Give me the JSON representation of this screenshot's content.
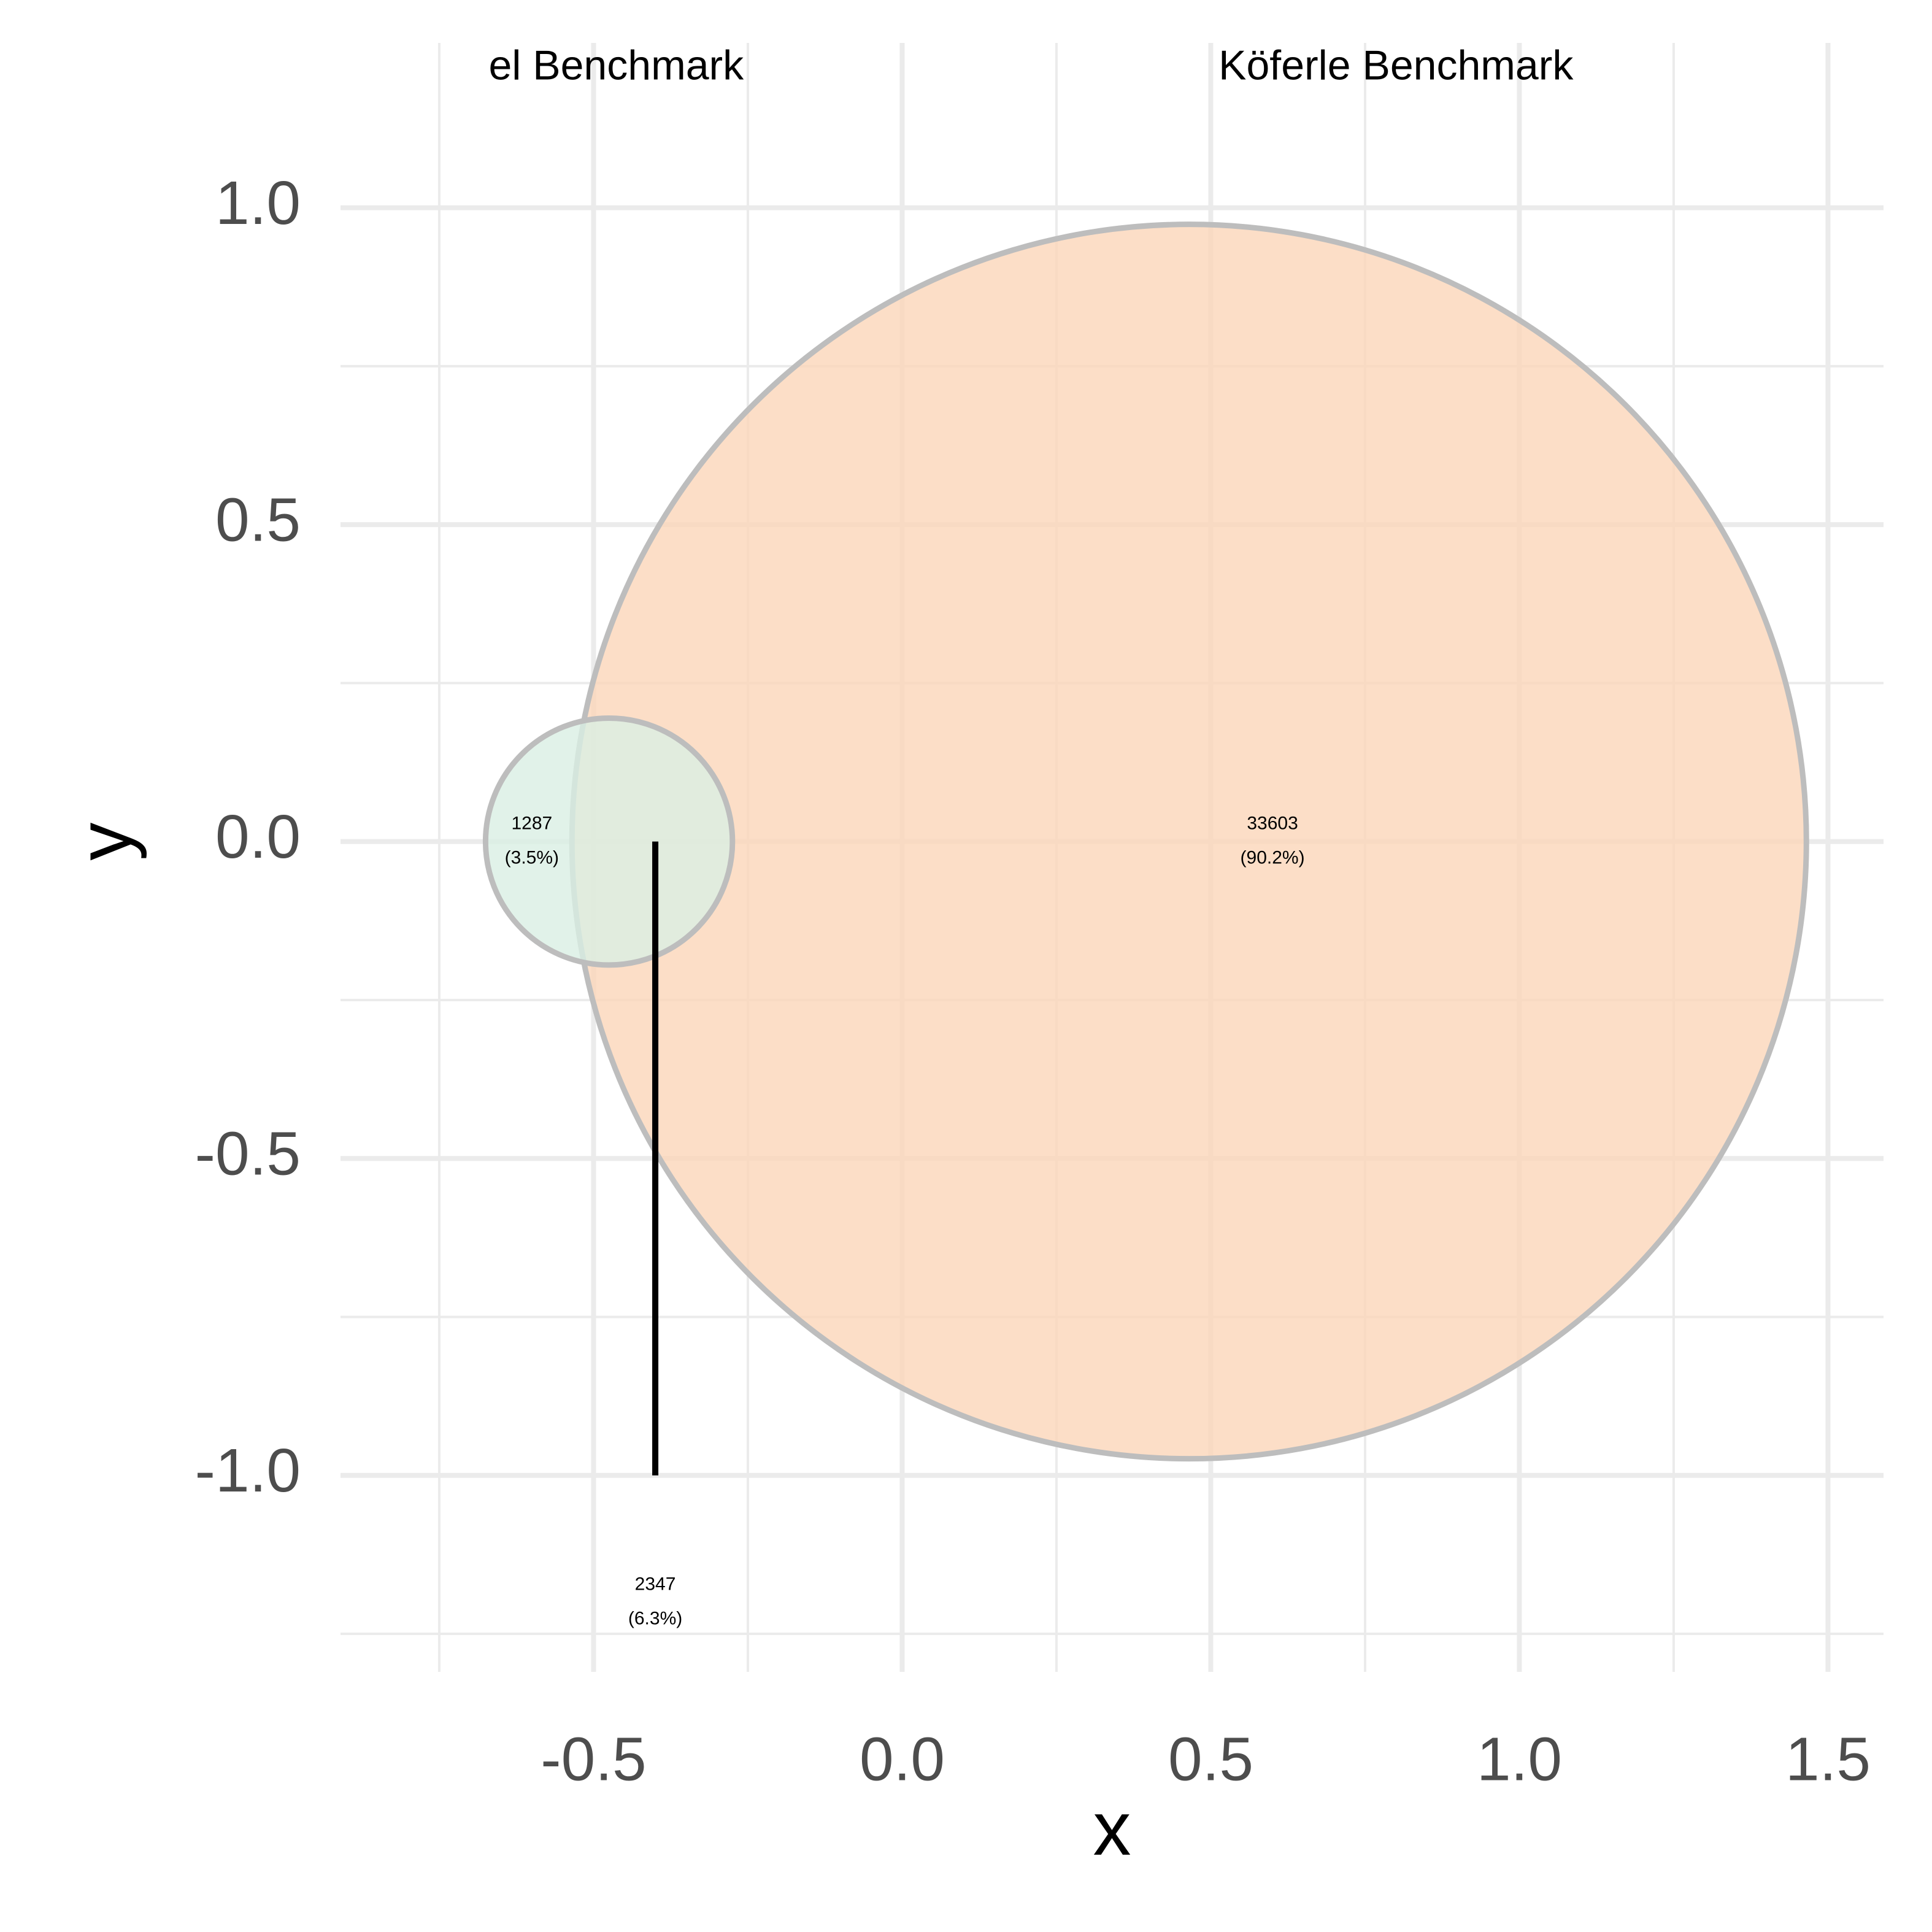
{
  "chart_data": {
    "type": "venn",
    "title": "",
    "xlabel": "x",
    "ylabel": "y",
    "xlim": [
      -0.91,
      1.59
    ],
    "ylim": [
      -1.31,
      1.26
    ],
    "grid": true,
    "x_ticks": [
      {
        "value": -0.5,
        "label": "-0.5"
      },
      {
        "value": 0.0,
        "label": "0.0"
      },
      {
        "value": 0.5,
        "label": "0.5"
      },
      {
        "value": 1.0,
        "label": "1.0"
      },
      {
        "value": 1.5,
        "label": "1.5"
      }
    ],
    "y_ticks": [
      {
        "value": 1.0,
        "label": "1.0"
      },
      {
        "value": 0.5,
        "label": "0.5"
      },
      {
        "value": 0.0,
        "label": "0.0"
      },
      {
        "value": -0.5,
        "label": "-0.5"
      },
      {
        "value": -1.0,
        "label": "-1.0"
      }
    ],
    "x_minor": [
      -0.75,
      -0.25,
      0.25,
      0.75,
      1.25
    ],
    "y_minor": [
      0.75,
      0.25,
      -0.25,
      -0.75,
      -1.25
    ],
    "sets": [
      {
        "name": "el Benchmark",
        "label_x": -0.67,
        "label_y": 1.22,
        "label_anchor": "start",
        "cx": -0.475,
        "cy": 0.0,
        "r": 0.2,
        "fill": "#d9efe4"
      },
      {
        "name": "Köferle Benchmark",
        "label_x": 0.8,
        "label_y": 1.22,
        "label_anchor": "middle",
        "cx": 0.465,
        "cy": 0.0,
        "r": 1.0,
        "fill": "#fbd6b9"
      }
    ],
    "circle_stroke": "#bdbdbd",
    "regions": [
      {
        "count": "1287",
        "percent": "(3.5%)",
        "x": -0.6,
        "y": 0.0
      },
      {
        "count": "33603",
        "percent": "(90.2%)",
        "x": 0.6,
        "y": 0.0
      },
      {
        "count": "2347",
        "percent": "(6.3%)",
        "x": -0.4,
        "y": -1.2
      }
    ],
    "leader_line": {
      "x": -0.4,
      "y_from": 0.0,
      "y_to": -1.0,
      "color": "#000000"
    }
  }
}
